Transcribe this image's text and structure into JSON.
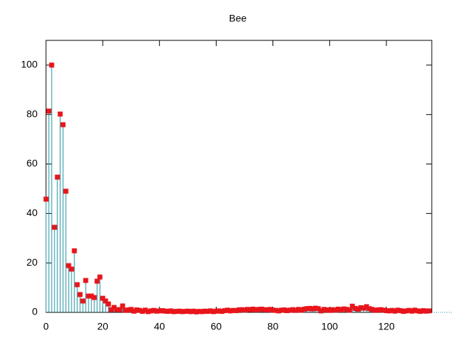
{
  "chart_data": {
    "type": "impulses",
    "title": "Bee",
    "x": [
      0,
      1,
      2,
      3,
      4,
      5,
      6,
      7,
      8,
      9,
      10,
      11,
      12,
      13,
      14,
      15,
      16,
      17,
      18,
      19,
      20,
      21,
      22,
      23,
      24,
      25,
      26,
      27,
      28,
      29,
      30,
      31,
      32,
      33,
      34,
      35,
      36,
      37,
      38,
      39,
      40,
      41,
      42,
      43,
      44,
      45,
      46,
      47,
      48,
      49,
      50,
      51,
      52,
      53,
      54,
      55,
      56,
      57,
      58,
      59,
      60,
      61,
      62,
      63,
      64,
      65,
      66,
      67,
      68,
      69,
      70,
      71,
      72,
      73,
      74,
      75,
      76,
      77,
      78,
      79,
      80,
      81,
      82,
      83,
      84,
      85,
      86,
      87,
      88,
      89,
      90,
      91,
      92,
      93,
      94,
      95,
      96,
      97,
      98,
      99,
      100,
      101,
      102,
      103,
      104,
      105,
      106,
      107,
      108,
      109,
      110,
      111,
      112,
      113,
      114,
      115,
      116,
      117,
      118,
      119,
      120,
      121,
      122,
      123,
      124,
      125,
      126,
      127,
      128,
      129,
      130,
      131,
      132,
      133,
      134,
      135
    ],
    "series": [
      {
        "impulse_color": "#1a8fa0",
        "point_color": "#e8151b",
        "values": [
          45.8,
          81.4,
          100,
          34.4,
          54.7,
          80.2,
          75.9,
          49,
          18.9,
          17.5,
          24.9,
          11.2,
          7.2,
          4.6,
          12.9,
          6.6,
          6.6,
          6,
          12.6,
          14.3,
          5.7,
          4.6,
          3.4,
          1.1,
          2,
          1.1,
          1.1,
          2.6,
          0.8,
          1.0,
          1.2,
          0.5,
          1.0,
          0.8,
          0.4,
          0.9,
          0.3,
          0.6,
          0.8,
          0.5,
          0.6,
          0.7,
          0.5,
          0.4,
          0.6,
          0.3,
          0.4,
          0.5,
          0.3,
          0.4,
          0.5,
          0.3,
          0.5,
          0.2,
          0.4,
          0.3,
          0.5,
          0.4,
          0.6,
          0.3,
          0.5,
          0.6,
          0.4,
          0.7,
          0.9,
          0.6,
          0.8,
          0.7,
          1.0,
          1.1,
          0.9,
          1.2,
          1.1,
          1.3,
          1.0,
          1.2,
          1.3,
          1.1,
          1.0,
          1.2,
          0.9,
          0.8,
          0.6,
          0.9,
          1.0,
          0.7,
          0.9,
          1.1,
          0.8,
          1.2,
          0.9,
          1.3,
          1.5,
          1.6,
          1.4,
          1.7,
          1.5,
          0.6,
          1.2,
          1.0,
          0.8,
          1.1,
          0.9,
          1.3,
          1.0,
          1.4,
          1.2,
          0.9,
          2.5,
          1.6,
          1.3,
          1.9,
          1.7,
          2.3,
          1.5,
          1.2,
          0.8,
          1.0,
          1.1,
          0.9,
          0.7,
          0.6,
          0.8,
          0.5,
          0.9,
          0.7,
          0.4,
          0.6,
          0.8,
          0.5,
          0.9,
          0.6,
          0.4,
          0.7,
          0.5,
          0.6
        ]
      }
    ],
    "xlim": [
      0,
      136
    ],
    "ylim": [
      0,
      110
    ],
    "xticks": [
      0,
      20,
      40,
      60,
      80,
      100,
      120
    ],
    "yticks": [
      0,
      20,
      40,
      60,
      80,
      100
    ]
  }
}
